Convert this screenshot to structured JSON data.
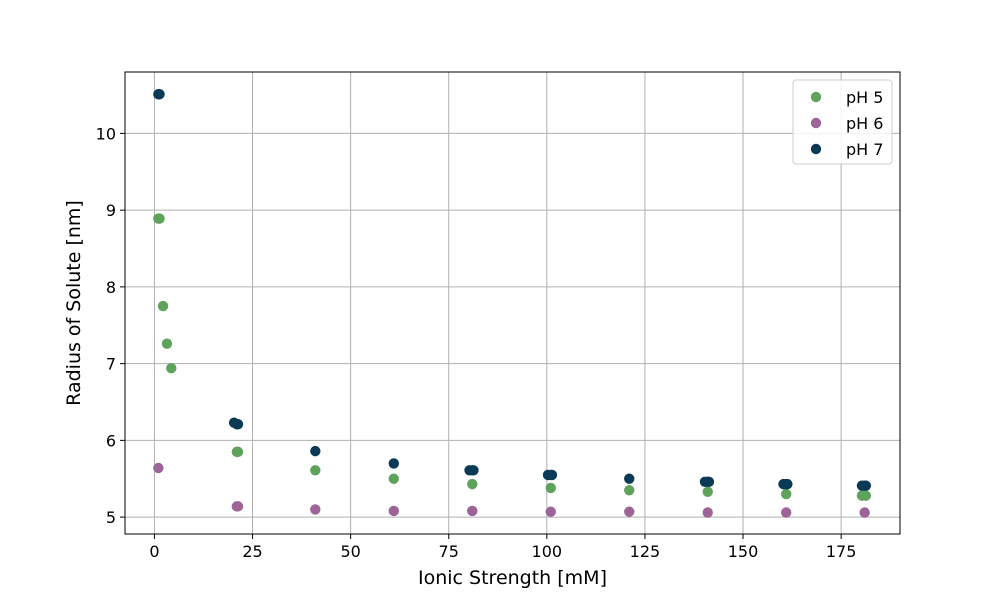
{
  "chart_data": {
    "type": "scatter",
    "title": "",
    "xlabel": "Ionic Strength [mM]",
    "ylabel": "Radius of Solute [nm]",
    "xlim": [
      -7.5,
      190
    ],
    "ylim": [
      4.78,
      10.8
    ],
    "xticks": [
      0,
      25,
      50,
      75,
      100,
      125,
      150,
      175
    ],
    "yticks": [
      5,
      6,
      7,
      8,
      9,
      10
    ],
    "grid": true,
    "legend_position": "top-right",
    "series": [
      {
        "name": "pH 5",
        "color": "#5fa25b",
        "points": [
          [
            1,
            8.89
          ],
          [
            1.3,
            8.89
          ],
          [
            2.2,
            7.75
          ],
          [
            3.2,
            7.26
          ],
          [
            4.3,
            6.94
          ],
          [
            21,
            5.85
          ],
          [
            21.3,
            5.85
          ],
          [
            41,
            5.61
          ],
          [
            61,
            5.5
          ],
          [
            81,
            5.43
          ],
          [
            101,
            5.38
          ],
          [
            121,
            5.35
          ],
          [
            141,
            5.33
          ],
          [
            161,
            5.3
          ],
          [
            180.3,
            5.28
          ],
          [
            181.3,
            5.28
          ]
        ]
      },
      {
        "name": "pH 6",
        "color": "#9c6497",
        "points": [
          [
            1,
            5.64
          ],
          [
            21,
            5.14
          ],
          [
            21.3,
            5.14
          ],
          [
            41,
            5.1
          ],
          [
            61,
            5.08
          ],
          [
            81,
            5.08
          ],
          [
            101,
            5.07
          ],
          [
            121,
            5.07
          ],
          [
            141,
            5.06
          ],
          [
            161,
            5.06
          ],
          [
            181,
            5.06
          ]
        ]
      },
      {
        "name": "pH 7",
        "color": "#0b3a56",
        "points": [
          [
            1,
            10.51
          ],
          [
            1.3,
            10.51
          ],
          [
            20.3,
            6.23
          ],
          [
            21,
            6.21
          ],
          [
            21.3,
            6.21
          ],
          [
            41,
            5.86
          ],
          [
            61,
            5.7
          ],
          [
            80.3,
            5.61
          ],
          [
            81,
            5.61
          ],
          [
            81.3,
            5.61
          ],
          [
            100.3,
            5.55
          ],
          [
            101,
            5.55
          ],
          [
            101.3,
            5.55
          ],
          [
            121,
            5.5
          ],
          [
            140.3,
            5.46
          ],
          [
            141,
            5.46
          ],
          [
            141.3,
            5.46
          ],
          [
            160.3,
            5.43
          ],
          [
            161,
            5.43
          ],
          [
            161.3,
            5.43
          ],
          [
            180.3,
            5.41
          ],
          [
            181,
            5.41
          ],
          [
            181.3,
            5.41
          ]
        ]
      }
    ]
  }
}
